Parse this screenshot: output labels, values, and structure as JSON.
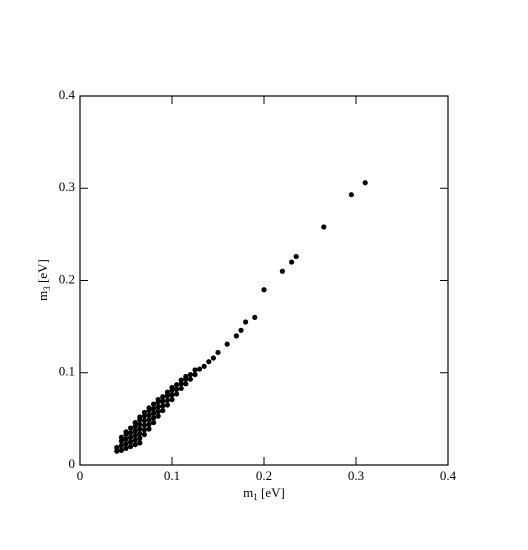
{
  "chart_data": {
    "type": "scatter",
    "x_label": [
      "m",
      "1",
      " [eV]"
    ],
    "y_label": [
      "m",
      "3",
      " [eV]"
    ],
    "color": "#000000",
    "xlim": [
      0,
      0.4
    ],
    "ylim": [
      0,
      0.4
    ],
    "xticks": [
      0,
      0.1,
      0.2,
      0.3,
      0.4
    ],
    "yticks": [
      0,
      0.1,
      0.2,
      0.3,
      0.4
    ],
    "x": [
      0.04,
      0.04,
      0.045,
      0.045,
      0.045,
      0.045,
      0.05,
      0.05,
      0.05,
      0.05,
      0.05,
      0.055,
      0.055,
      0.055,
      0.055,
      0.055,
      0.06,
      0.06,
      0.06,
      0.06,
      0.06,
      0.06,
      0.065,
      0.065,
      0.065,
      0.065,
      0.065,
      0.065,
      0.065,
      0.07,
      0.07,
      0.07,
      0.07,
      0.07,
      0.07,
      0.075,
      0.075,
      0.075,
      0.075,
      0.075,
      0.075,
      0.08,
      0.08,
      0.08,
      0.08,
      0.08,
      0.085,
      0.085,
      0.085,
      0.085,
      0.085,
      0.09,
      0.09,
      0.09,
      0.09,
      0.095,
      0.095,
      0.095,
      0.095,
      0.1,
      0.1,
      0.1,
      0.1,
      0.105,
      0.105,
      0.105,
      0.11,
      0.11,
      0.11,
      0.115,
      0.115,
      0.115,
      0.12,
      0.12,
      0.125,
      0.125,
      0.13,
      0.135,
      0.14,
      0.145,
      0.15,
      0.16,
      0.17,
      0.175,
      0.18,
      0.19,
      0.2,
      0.22,
      0.23,
      0.235,
      0.265,
      0.295,
      0.31
    ],
    "values": [
      0.015,
      0.019,
      0.016,
      0.021,
      0.026,
      0.03,
      0.018,
      0.023,
      0.028,
      0.033,
      0.036,
      0.02,
      0.025,
      0.03,
      0.035,
      0.04,
      0.022,
      0.027,
      0.032,
      0.037,
      0.042,
      0.046,
      0.024,
      0.029,
      0.034,
      0.039,
      0.044,
      0.049,
      0.052,
      0.033,
      0.038,
      0.043,
      0.048,
      0.053,
      0.057,
      0.039,
      0.044,
      0.049,
      0.054,
      0.059,
      0.062,
      0.046,
      0.051,
      0.056,
      0.061,
      0.066,
      0.053,
      0.058,
      0.063,
      0.068,
      0.071,
      0.059,
      0.064,
      0.069,
      0.074,
      0.065,
      0.07,
      0.075,
      0.079,
      0.071,
      0.076,
      0.081,
      0.084,
      0.077,
      0.082,
      0.087,
      0.083,
      0.088,
      0.092,
      0.088,
      0.093,
      0.096,
      0.093,
      0.098,
      0.098,
      0.103,
      0.104,
      0.107,
      0.112,
      0.116,
      0.122,
      0.131,
      0.14,
      0.146,
      0.155,
      0.16,
      0.19,
      0.21,
      0.22,
      0.226,
      0.258,
      0.293,
      0.306
    ]
  }
}
